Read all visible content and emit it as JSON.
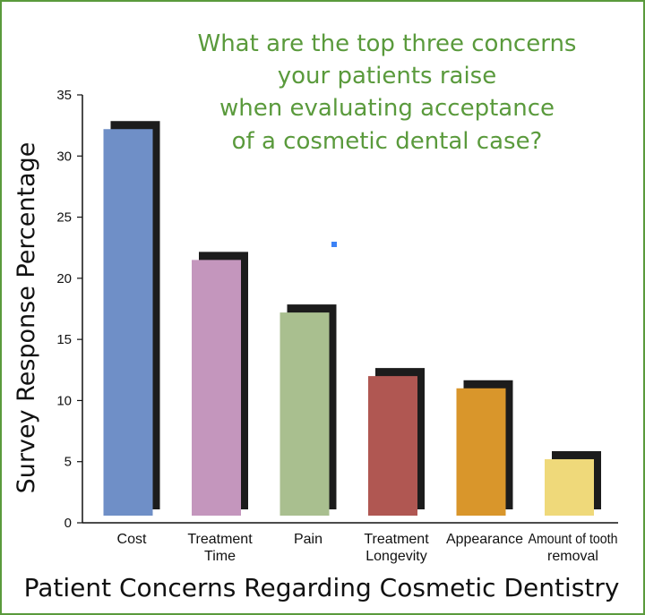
{
  "chart_data": {
    "type": "bar",
    "title": [
      "What are the top three concerns",
      "your patients raise",
      "when evaluating acceptance",
      "of a cosmetic dental case?"
    ],
    "xlabel": "Patient Concerns Regarding Cosmetic Dentistry",
    "ylabel": "Survey Response Percentage",
    "ylim": [
      0,
      35
    ],
    "yticks": [
      0,
      5,
      10,
      15,
      20,
      25,
      30,
      35
    ],
    "categories": [
      [
        "Cost"
      ],
      [
        "Treatment",
        "Time"
      ],
      [
        "Pain"
      ],
      [
        "Treatment",
        "Longevity"
      ],
      [
        "Appearance"
      ],
      [
        "Amount of tooth",
        "removal"
      ]
    ],
    "values": [
      32.2,
      21.5,
      17.2,
      12.0,
      11.0,
      5.2
    ],
    "colors": [
      "#6f8fc7",
      "#c496bd",
      "#a9bf8f",
      "#b05752",
      "#d9962b",
      "#efd97a"
    ],
    "shadow_color": "#1c1c1c",
    "title_color": "#5a9a3c",
    "frame_color": "#5a9a3c",
    "grid": false,
    "legend": "none"
  }
}
